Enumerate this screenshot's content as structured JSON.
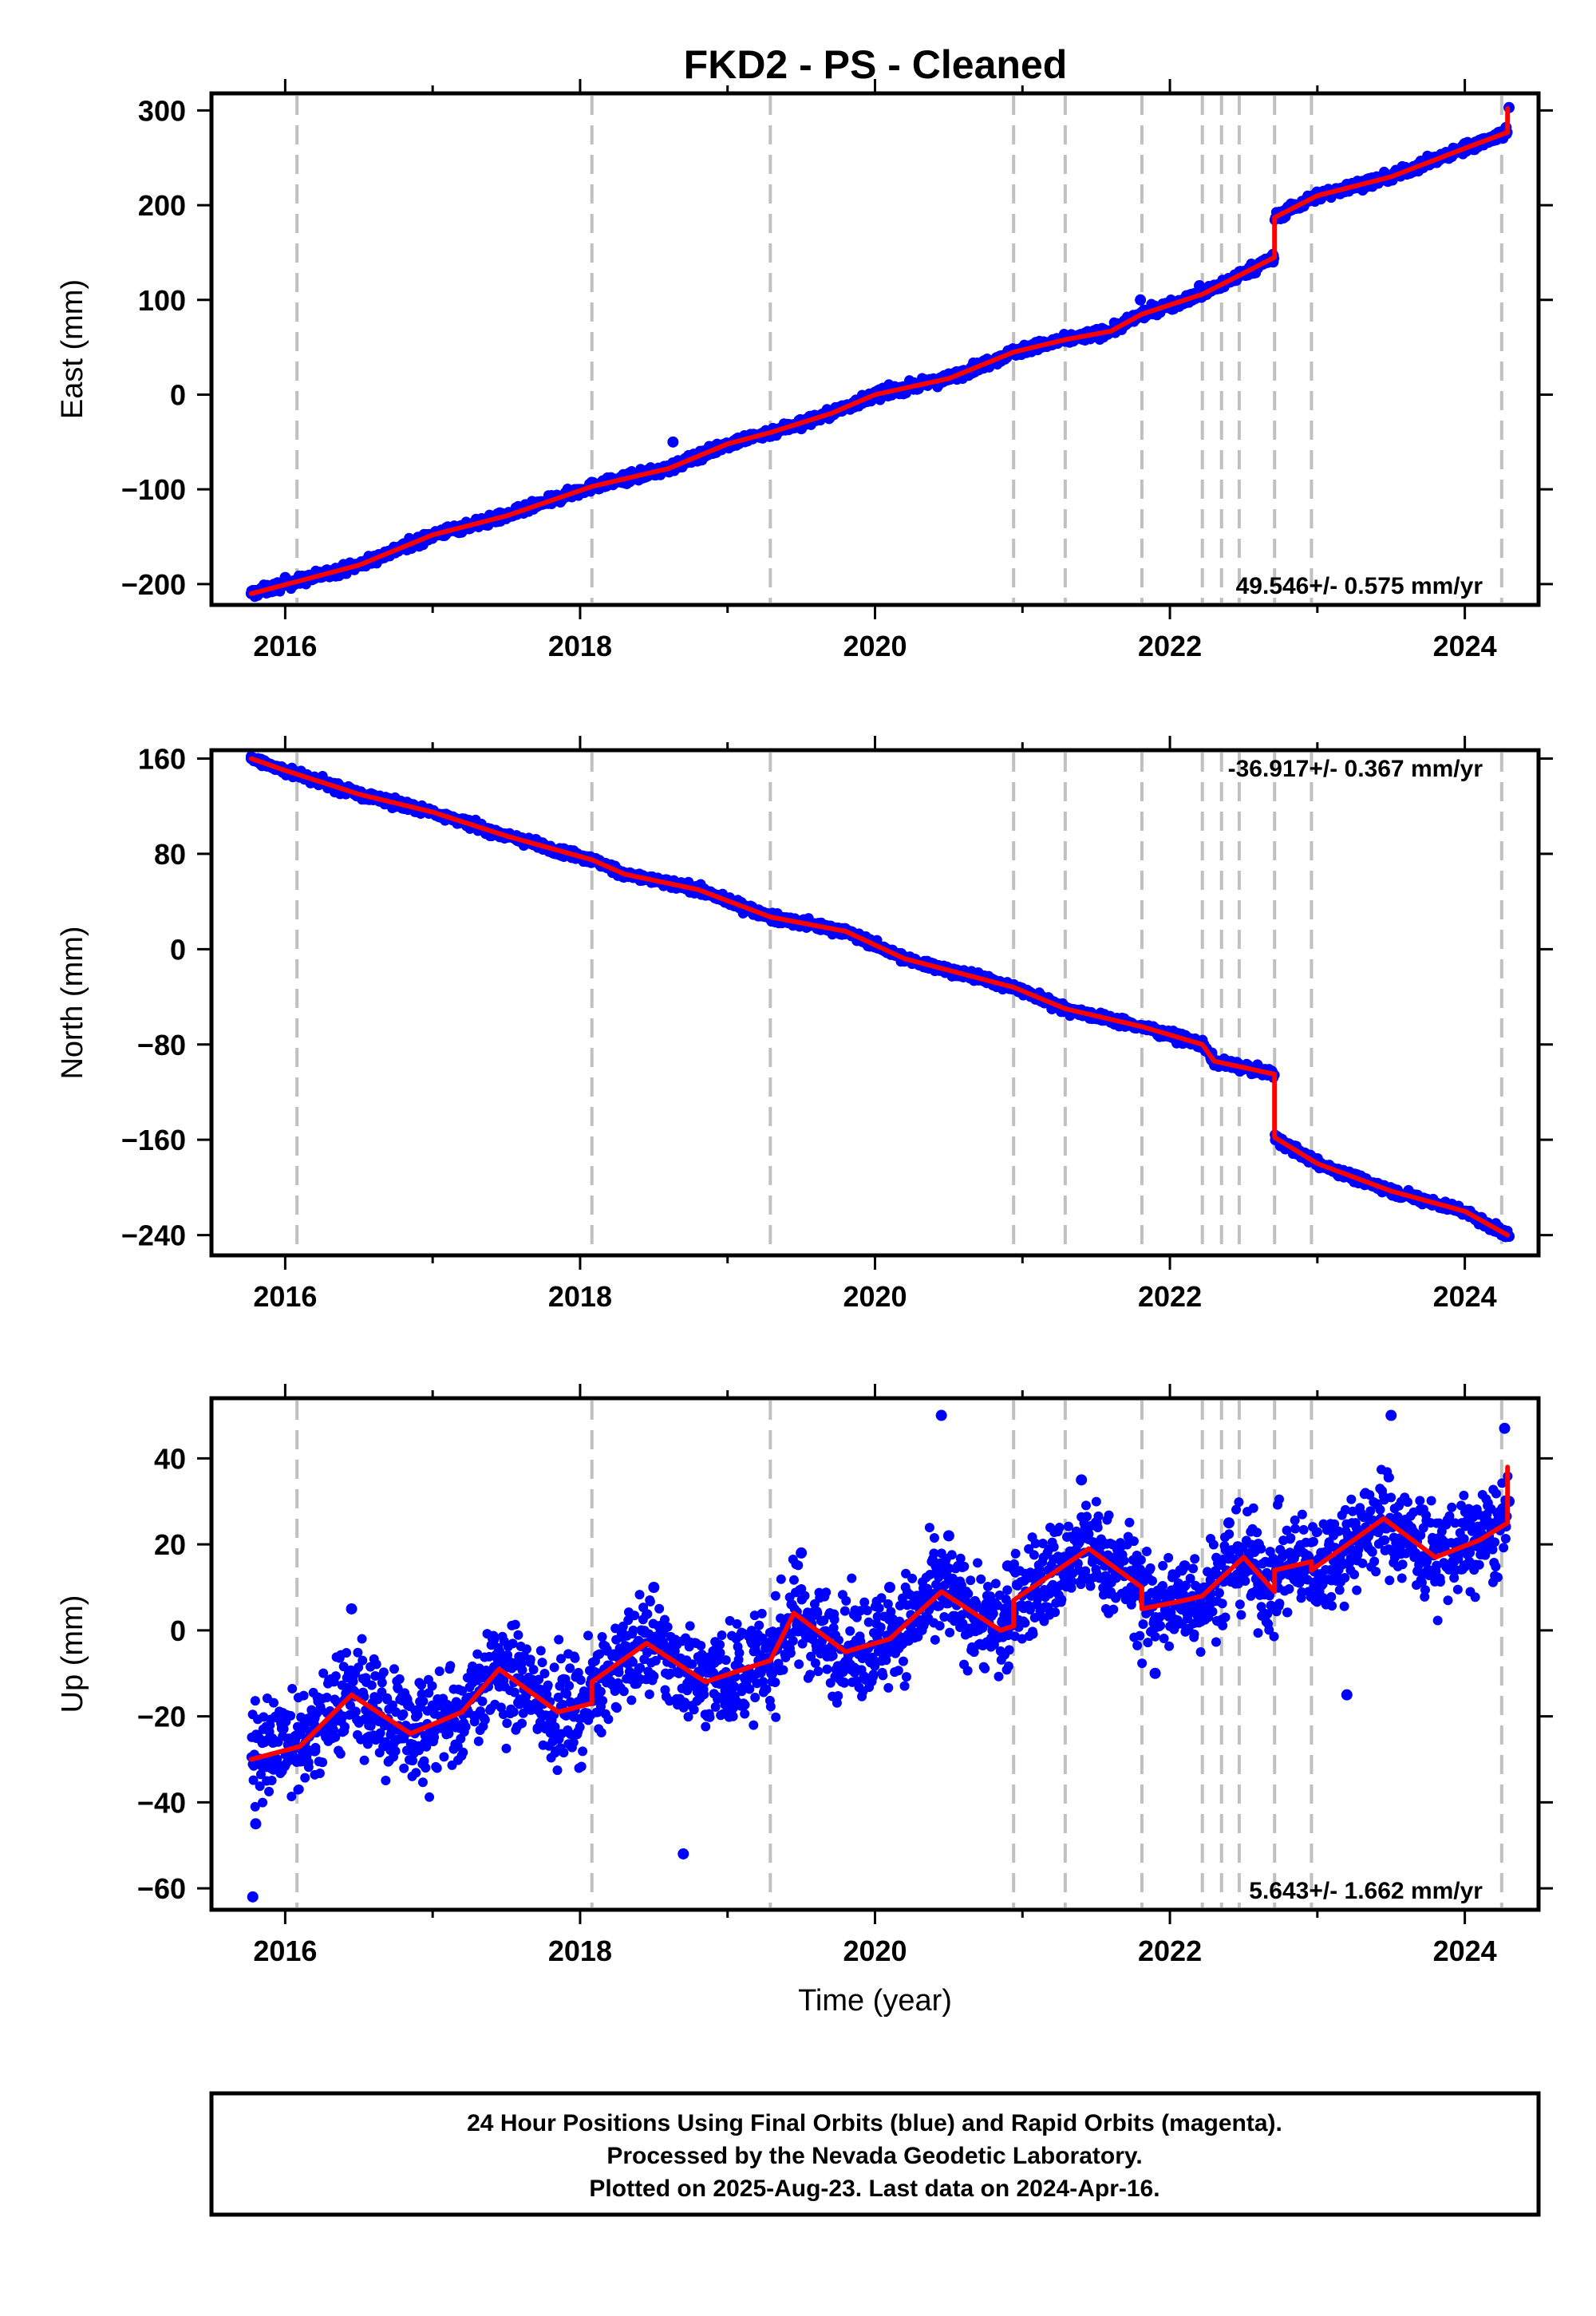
{
  "title": "FKD2  - PS - Cleaned",
  "footnote": {
    "lines": [
      "24 Hour Positions Using Final Orbits (blue) and Rapid Orbits (magenta).",
      "Processed by the Nevada Geodetic Laboratory.",
      "Plotted on 2025-Aug-23. Last data on 2024-Apr-16."
    ]
  },
  "colors": {
    "final_orbits": "#0000ff",
    "rapid_orbits": "#ff00ff",
    "model_fit": "#ff0000",
    "event_lines": "#c0c0c0",
    "frame": "#000000"
  },
  "chart_data": [
    {
      "type": "scatter",
      "title": "FKD2  - PS - Cleaned",
      "xlabel": "",
      "ylabel": "East (mm)",
      "xlim": [
        2015.5,
        2024.5
      ],
      "ylim": [
        -222,
        318
      ],
      "xticks": [
        2016,
        2018,
        2020,
        2022,
        2024
      ],
      "yticks": [
        -200,
        -100,
        0,
        100,
        200,
        300
      ],
      "rate_annotation": "49.546+/- 0.575 mm/yr",
      "rate_position": "bottom-right",
      "grid": false,
      "event_lines_x": [
        2016.08,
        2018.08,
        2019.29,
        2020.94,
        2021.29,
        2021.81,
        2022.22,
        2022.35,
        2022.47,
        2022.71,
        2022.96,
        2024.25
      ],
      "model": {
        "name": "model fit",
        "x": [
          2015.77,
          2016.5,
          2017.0,
          2017.5,
          2018.08,
          2018.6,
          2019.0,
          2019.29,
          2019.7,
          2020.0,
          2020.5,
          2020.94,
          2021.29,
          2021.6,
          2021.81,
          2022.22,
          2022.71,
          2022.71,
          2023.0,
          2023.5,
          2024.0,
          2024.29,
          2024.29
        ],
        "y": [
          -210,
          -180,
          -148,
          -128,
          -97,
          -78,
          -52,
          -40,
          -20,
          0,
          17,
          45,
          58,
          67,
          85,
          106,
          145,
          187,
          210,
          230,
          260,
          277,
          302
        ]
      },
      "series": [
        {
          "name": "Final Orbits",
          "x": [
            2015.77,
            2016.0,
            2016.5,
            2016.85,
            2017.0,
            2017.5,
            2018.0,
            2018.3,
            2018.63,
            2018.9,
            2019.2,
            2019.5,
            2019.8,
            2020.0,
            2020.5,
            2020.8,
            2021.0,
            2021.4,
            2021.8,
            2022.0,
            2022.2,
            2022.5,
            2022.7,
            2022.8,
            2023.2,
            2023.7,
            2024.0,
            2024.28,
            2024.3
          ],
          "y": [
            -210,
            -193,
            -180,
            -160,
            -150,
            -130,
            -101,
            -93,
            -50,
            -62,
            -43,
            -36,
            -12,
            2,
            18,
            35,
            45,
            62,
            100,
            98,
            115,
            128,
            140,
            198,
            222,
            240,
            265,
            282,
            303
          ]
        }
      ]
    },
    {
      "type": "scatter",
      "title": "",
      "xlabel": "",
      "ylabel": "North (mm)",
      "xlim": [
        2015.5,
        2024.5
      ],
      "ylim": [
        -257,
        167
      ],
      "xticks": [
        2016,
        2018,
        2020,
        2022,
        2024
      ],
      "yticks": [
        -240,
        -160,
        -80,
        0,
        80,
        160
      ],
      "rate_annotation": "-36.917+/- 0.367 mm/yr",
      "rate_position": "top-right",
      "grid": false,
      "event_lines_x": [
        2016.08,
        2018.08,
        2019.29,
        2020.94,
        2021.29,
        2021.81,
        2022.22,
        2022.35,
        2022.47,
        2022.71,
        2022.96,
        2024.25
      ],
      "model": {
        "name": "model fit",
        "x": [
          2015.77,
          2016.0,
          2016.5,
          2017.0,
          2017.5,
          2018.08,
          2018.3,
          2018.8,
          2019.29,
          2019.8,
          2020.2,
          2020.94,
          2021.29,
          2021.81,
          2022.22,
          2022.3,
          2022.71,
          2022.71,
          2023.0,
          2023.5,
          2024.0,
          2024.29
        ],
        "y": [
          160,
          150,
          130,
          115,
          95,
          75,
          63,
          50,
          27,
          15,
          -8,
          -32,
          -50,
          -65,
          -80,
          -94,
          -105,
          -158,
          -180,
          -203,
          -220,
          -240
        ]
      },
      "series": [
        {
          "name": "Final Orbits",
          "x": [
            2015.77,
            2016.2,
            2016.7,
            2017.2,
            2017.7,
            2018.2,
            2018.7,
            2019.2,
            2019.7,
            2020.2,
            2020.7,
            2021.2,
            2021.8,
            2022.2,
            2022.6,
            2022.75,
            2023.2,
            2023.7,
            2024.2,
            2024.3
          ],
          "y": [
            160,
            140,
            125,
            108,
            92,
            68,
            55,
            30,
            17,
            -10,
            -20,
            -50,
            -65,
            -82,
            -100,
            -165,
            -190,
            -210,
            -235,
            -241
          ]
        }
      ]
    },
    {
      "type": "scatter",
      "title": "",
      "xlabel": "Time (year)",
      "ylabel": "Up (mm)",
      "xlim": [
        2015.5,
        2024.5
      ],
      "ylim": [
        -65,
        54
      ],
      "xticks": [
        2016,
        2018,
        2020,
        2022,
        2024
      ],
      "yticks": [
        -60,
        -40,
        -20,
        0,
        20,
        40
      ],
      "rate_annotation": "5.643+/- 1.662 mm/yr",
      "rate_position": "bottom-right",
      "grid": false,
      "event_lines_x": [
        2016.08,
        2018.08,
        2019.29,
        2020.94,
        2021.29,
        2021.81,
        2022.22,
        2022.35,
        2022.47,
        2022.71,
        2022.96,
        2024.25
      ],
      "model": {
        "name": "model fit",
        "x": [
          2015.77,
          2016.1,
          2016.45,
          2016.85,
          2017.2,
          2017.45,
          2017.85,
          2018.08,
          2018.08,
          2018.45,
          2018.85,
          2019.2,
          2019.29,
          2019.45,
          2019.8,
          2020.1,
          2020.45,
          2020.85,
          2020.94,
          2020.94,
          2021.45,
          2021.81,
          2021.81,
          2022.1,
          2022.22,
          2022.5,
          2022.71,
          2022.71,
          2022.96,
          2022.96,
          2023.45,
          2023.8,
          2024.1,
          2024.29,
          2024.29
        ],
        "y": [
          -30,
          -27,
          -15,
          -24,
          -19,
          -9,
          -19,
          -17,
          -12,
          -3,
          -12,
          -8,
          -7,
          4,
          -5,
          -2,
          9,
          0,
          1,
          7,
          19,
          10,
          5,
          7,
          8,
          17,
          9,
          14,
          16,
          14,
          26,
          17,
          21,
          25,
          38
        ]
      },
      "series": [
        {
          "name": "Final Orbits",
          "x": [
            2015.78,
            2015.8,
            2016.2,
            2016.45,
            2016.8,
            2017.1,
            2017.45,
            2017.8,
            2018.1,
            2018.5,
            2018.7,
            2018.9,
            2019.3,
            2019.5,
            2019.9,
            2020.1,
            2020.45,
            2020.5,
            2020.8,
            2020.9,
            2021.2,
            2021.4,
            2021.5,
            2021.9,
            2022.1,
            2022.4,
            2022.6,
            2022.9,
            2023.2,
            2023.5,
            2023.7,
            2024.0,
            2024.27,
            2024.3
          ],
          "y": [
            -62,
            -45,
            -28,
            5,
            -25,
            -20,
            -5,
            -20,
            -15,
            10,
            -52,
            -10,
            -10,
            18,
            -5,
            10,
            50,
            22,
            0,
            15,
            10,
            35,
            25,
            -10,
            15,
            25,
            20,
            12,
            -15,
            50,
            28,
            15,
            47,
            30
          ]
        }
      ]
    }
  ]
}
